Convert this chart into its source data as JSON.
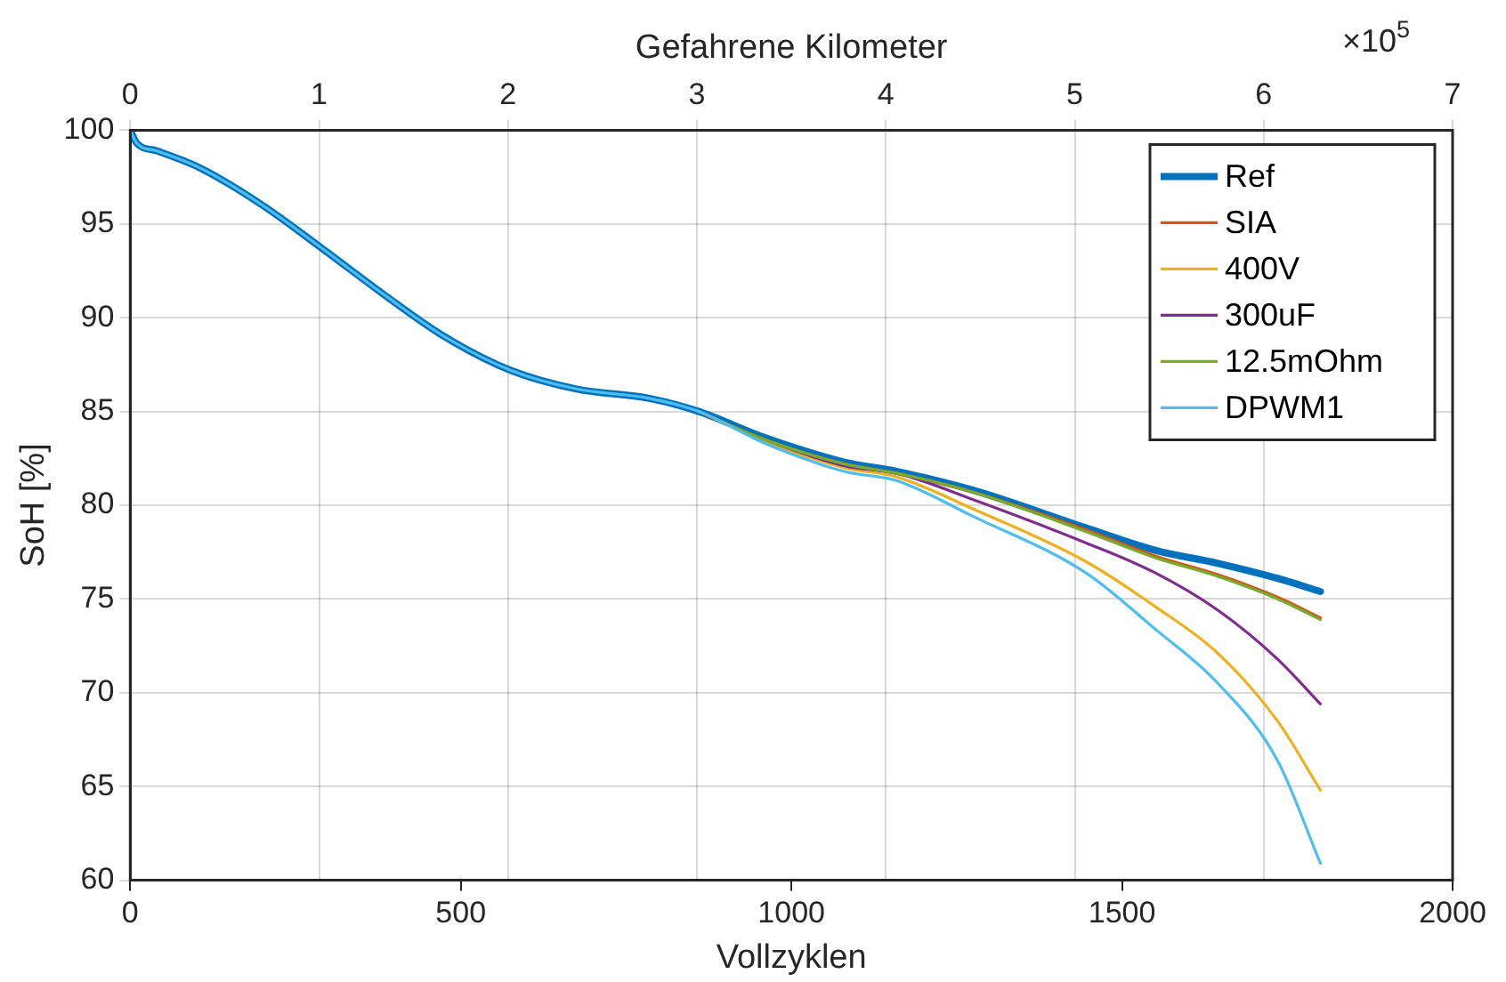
{
  "chart_data": {
    "type": "line",
    "xlabel": "Vollzyklen",
    "ylabel": "SoH [%]",
    "x2label": "Gefahrene Kilometer",
    "x": [
      0,
      10,
      40,
      105,
      200,
      290,
      385,
      475,
      575,
      675,
      785,
      860,
      960,
      1080,
      1160,
      1275,
      1445,
      1550,
      1645,
      1735,
      1800
    ],
    "series": [
      {
        "name": "Ref",
        "color": "#0072bd",
        "values": [
          100,
          99.3,
          98.9,
          98.0,
          96.0,
          93.7,
          91.2,
          89.0,
          87.2,
          86.2,
          85.7,
          85.0,
          83.6,
          82.3,
          81.8,
          80.8,
          78.8,
          77.6,
          76.9,
          76.1,
          75.4
        ]
      },
      {
        "name": "SIA",
        "color": "#d95319",
        "values": [
          null,
          null,
          null,
          null,
          null,
          null,
          null,
          null,
          null,
          null,
          null,
          85.0,
          83.5,
          82.2,
          81.7,
          80.7,
          78.7,
          77.3,
          76.3,
          75.1,
          74.0
        ]
      },
      {
        "name": "400V",
        "color": "#edb120",
        "values": [
          null,
          null,
          null,
          null,
          null,
          null,
          null,
          null,
          null,
          null,
          null,
          85.0,
          83.4,
          82.0,
          81.5,
          79.8,
          77.0,
          74.6,
          72.1,
          68.5,
          64.8
        ]
      },
      {
        "name": "300uF",
        "color": "#7e2f8e",
        "values": [
          null,
          null,
          null,
          null,
          null,
          null,
          null,
          null,
          null,
          null,
          null,
          85.0,
          83.5,
          82.1,
          81.7,
          80.3,
          78.0,
          76.4,
          74.4,
          71.8,
          69.4
        ]
      },
      {
        "name": "12.5mOhm",
        "color": "#77ac30",
        "values": [
          null,
          null,
          null,
          null,
          null,
          null,
          null,
          null,
          null,
          null,
          null,
          85.0,
          83.5,
          82.2,
          81.7,
          80.7,
          78.6,
          77.2,
          76.2,
          75.0,
          73.9
        ]
      },
      {
        "name": "DPWM1",
        "color": "#4dbeee",
        "values": [
          100,
          99.3,
          98.9,
          98.0,
          96.0,
          93.7,
          91.2,
          89.0,
          87.2,
          86.2,
          85.7,
          85.0,
          83.3,
          81.8,
          81.3,
          79.4,
          76.4,
          73.4,
          70.5,
          66.4,
          60.9
        ]
      }
    ],
    "xlim": [
      0,
      2000
    ],
    "xticks": [
      0,
      500,
      1000,
      1500,
      2000
    ],
    "x2lim": [
      0,
      7
    ],
    "x2ticks": [
      0,
      1,
      2,
      3,
      4,
      5,
      6,
      7
    ],
    "ylim": [
      60,
      100
    ],
    "yticks": [
      60,
      65,
      70,
      75,
      80,
      85,
      90,
      95,
      100
    ],
    "annotations": [
      "×10$^{5}$"
    ],
    "grid": true,
    "legend": "top right",
    "line_style": "solid",
    "marker": "none"
  }
}
